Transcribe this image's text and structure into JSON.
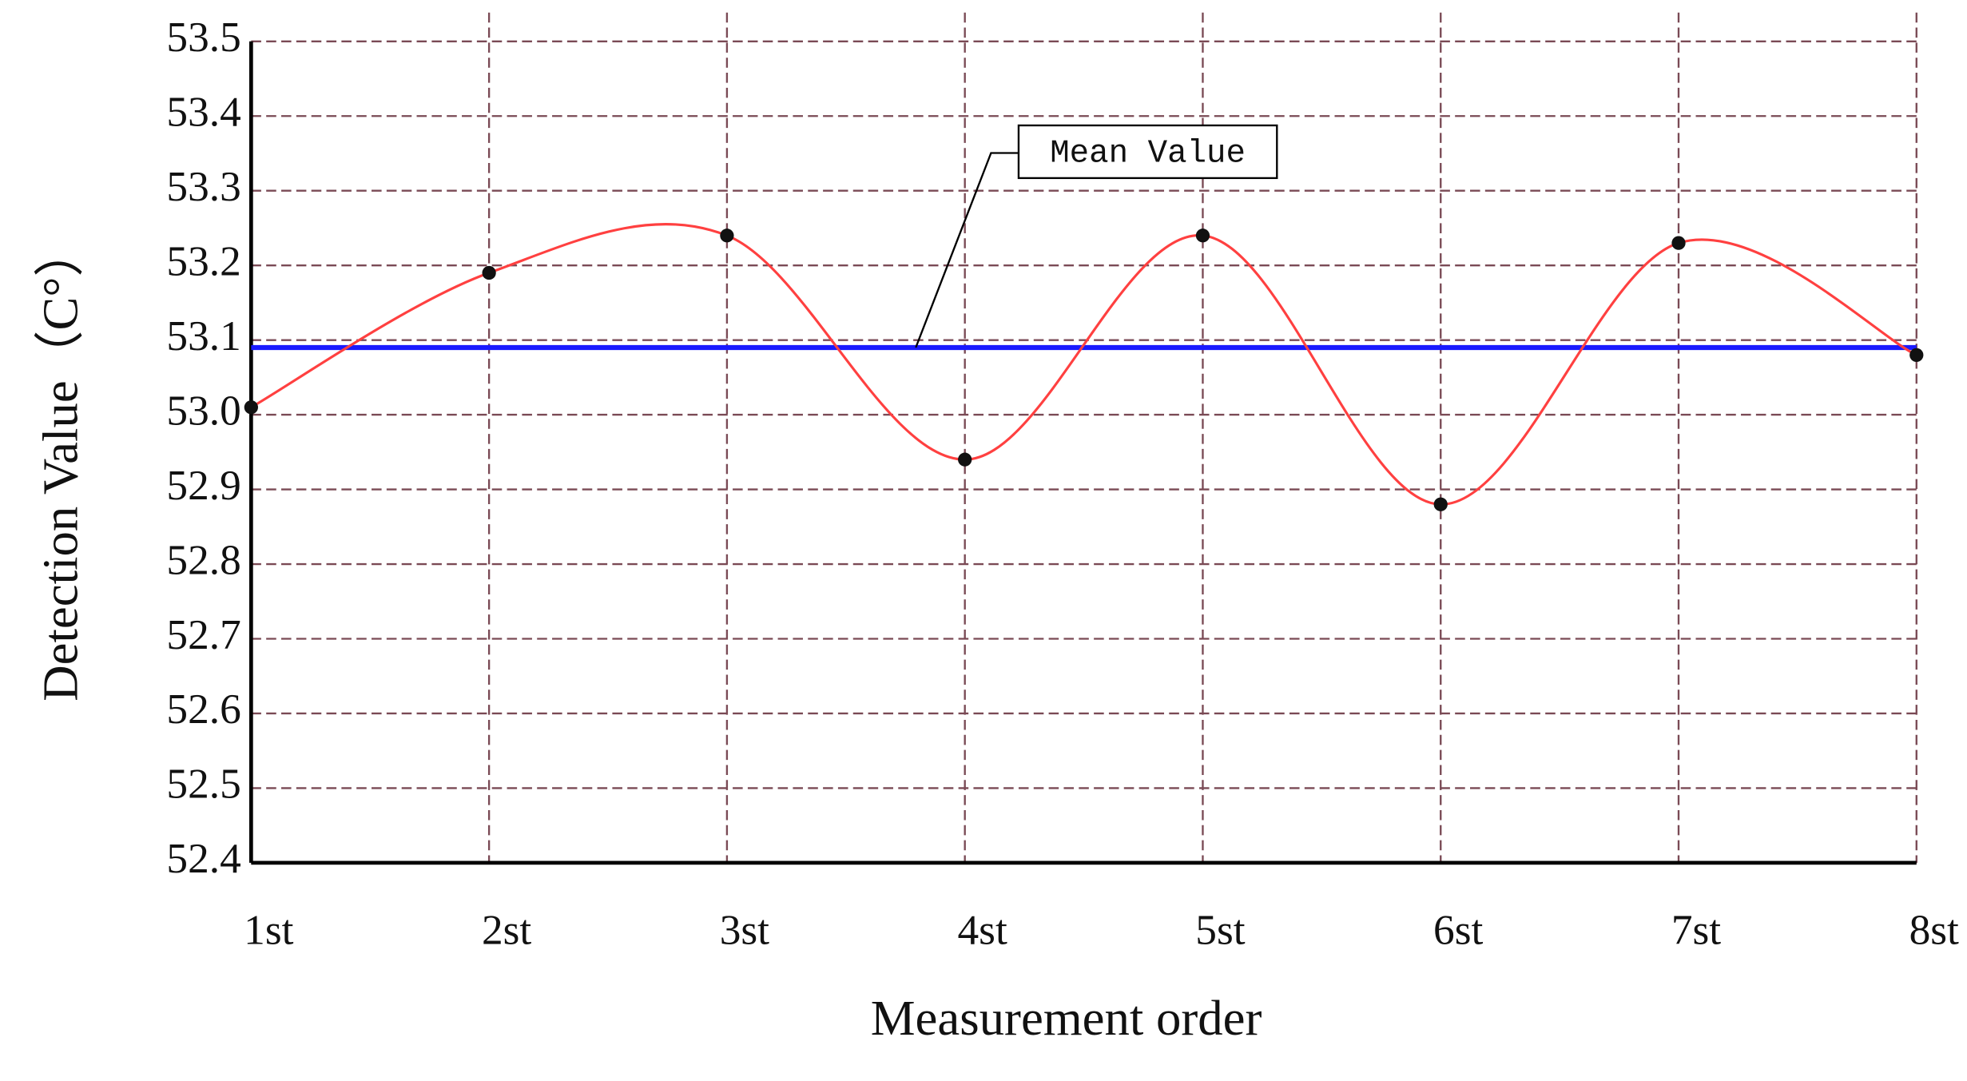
{
  "chart_data": {
    "type": "line",
    "xlabel": "Measurement order",
    "ylabel": "Detection Value（C°）",
    "categories": [
      "1st",
      "2st",
      "3st",
      "4st",
      "5st",
      "6st",
      "7st",
      "8st"
    ],
    "series": [
      {
        "name": "Detection Value",
        "color": "#ff4040",
        "values": [
          53.01,
          53.19,
          53.24,
          52.94,
          53.24,
          52.88,
          53.23,
          53.08
        ]
      }
    ],
    "mean_line": {
      "name": "Mean Value",
      "value": 53.09,
      "color": "#1a1aff"
    },
    "ylim": [
      52.4,
      53.5
    ],
    "yticks": [
      52.4,
      52.5,
      52.6,
      52.7,
      52.8,
      52.9,
      {
        "value": 53,
        "label": "53.0"
      },
      53.1,
      53.2,
      53.3,
      53.4,
      53.5
    ],
    "grid": true
  }
}
